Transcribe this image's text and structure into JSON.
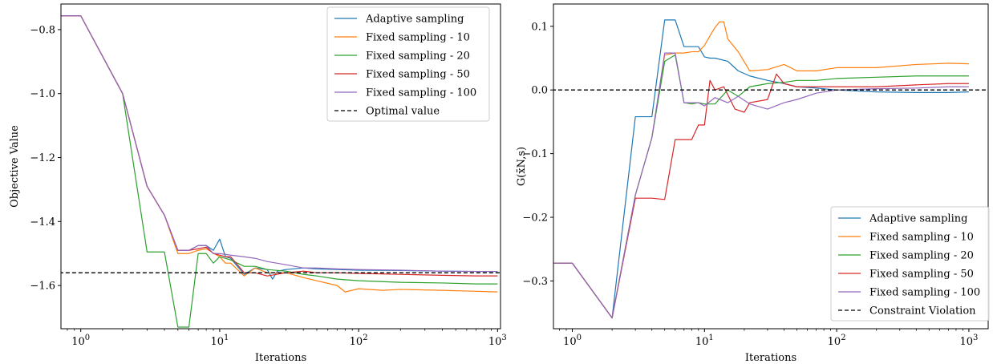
{
  "chart_data": [
    {
      "type": "line",
      "xscale": "log",
      "xlim": [
        0.72,
        1050
      ],
      "ylim": [
        -1.735,
        -0.72
      ],
      "xlabel": "Iterations",
      "ylabel": "Objective Value",
      "xticks": [
        1,
        10,
        100,
        1000
      ],
      "xtick_labels": [
        "10⁰",
        "10¹",
        "10²",
        "10³"
      ],
      "yticks": [
        -0.8,
        -1.0,
        -1.2,
        -1.4,
        -1.6
      ],
      "ytick_labels": [
        "−0.8",
        "−1.0",
        "−1.2",
        "−1.4",
        "−1.6"
      ],
      "legend_position": "top-right",
      "series": [
        {
          "name": "Adaptive sampling",
          "color": "#1f77b4",
          "x": [
            0.7,
            1,
            2,
            3,
            4,
            5,
            6,
            7,
            8,
            9,
            10,
            11,
            12,
            15,
            18,
            22,
            24,
            26,
            30,
            40,
            50,
            70,
            100,
            200,
            400,
            700,
            1000
          ],
          "y": [
            -0.757,
            -0.757,
            -1.0,
            -1.29,
            -1.38,
            -1.49,
            -1.49,
            -1.475,
            -1.475,
            -1.49,
            -1.455,
            -1.51,
            -1.515,
            -1.565,
            -1.545,
            -1.55,
            -1.58,
            -1.555,
            -1.55,
            -1.545,
            -1.548,
            -1.55,
            -1.552,
            -1.553,
            -1.555,
            -1.556,
            -1.556
          ]
        },
        {
          "name": "Fixed sampling - 10",
          "color": "#ff7f0e",
          "x": [
            0.7,
            1,
            2,
            3,
            4,
            5,
            6,
            7,
            8,
            10,
            11,
            12,
            15,
            18,
            22,
            30,
            40,
            50,
            70,
            80,
            100,
            150,
            200,
            400,
            700,
            1000
          ],
          "y": [
            -0.757,
            -0.757,
            -1.0,
            -1.29,
            -1.38,
            -1.5,
            -1.5,
            -1.49,
            -1.485,
            -1.51,
            -1.53,
            -1.53,
            -1.57,
            -1.545,
            -1.56,
            -1.56,
            -1.575,
            -1.585,
            -1.6,
            -1.62,
            -1.61,
            -1.615,
            -1.612,
            -1.615,
            -1.618,
            -1.62
          ]
        },
        {
          "name": "Fixed sampling - 20",
          "color": "#2ca02c",
          "x": [
            0.7,
            1,
            2,
            3,
            4,
            5,
            6,
            7,
            8,
            9,
            10,
            12,
            15,
            18,
            22,
            30,
            40,
            50,
            70,
            100,
            200,
            400,
            700,
            1000
          ],
          "y": [
            -0.757,
            -0.757,
            -1.0,
            -1.495,
            -1.495,
            -1.73,
            -1.73,
            -1.5,
            -1.5,
            -1.53,
            -1.51,
            -1.52,
            -1.54,
            -1.54,
            -1.55,
            -1.555,
            -1.565,
            -1.57,
            -1.58,
            -1.585,
            -1.59,
            -1.592,
            -1.595,
            -1.595
          ]
        },
        {
          "name": "Fixed sampling - 50",
          "color": "#d62728",
          "x": [
            0.7,
            1,
            2,
            3,
            4,
            5,
            6,
            7,
            8,
            9,
            10,
            11,
            12,
            15,
            18,
            22,
            30,
            40,
            50,
            70,
            100,
            200,
            400,
            700,
            1000
          ],
          "y": [
            -0.757,
            -0.757,
            -1.0,
            -1.29,
            -1.38,
            -1.49,
            -1.49,
            -1.485,
            -1.48,
            -1.5,
            -1.505,
            -1.51,
            -1.51,
            -1.56,
            -1.56,
            -1.57,
            -1.56,
            -1.555,
            -1.56,
            -1.56,
            -1.562,
            -1.565,
            -1.568,
            -1.57,
            -1.57
          ]
        },
        {
          "name": "Fixed sampling - 100",
          "color": "#9467bd",
          "x": [
            0.7,
            1,
            2,
            3,
            4,
            5,
            6,
            7,
            8,
            9,
            10,
            12,
            15,
            18,
            22,
            30,
            40,
            50,
            70,
            100,
            200,
            400,
            700,
            1000
          ],
          "y": [
            -0.757,
            -0.757,
            -1.0,
            -1.29,
            -1.38,
            -1.49,
            -1.49,
            -1.475,
            -1.475,
            -1.5,
            -1.5,
            -1.505,
            -1.51,
            -1.515,
            -1.525,
            -1.535,
            -1.545,
            -1.545,
            -1.548,
            -1.55,
            -1.552,
            -1.555,
            -1.556,
            -1.556
          ]
        },
        {
          "name": "Optimal value",
          "color": "#000000",
          "dashed": true,
          "x": [
            0.7,
            1050
          ],
          "y": [
            -1.56,
            -1.56
          ]
        }
      ]
    },
    {
      "type": "line",
      "xscale": "log",
      "xlim": [
        0.72,
        1400
      ],
      "ylim": [
        -0.375,
        0.135
      ],
      "xlabel": "Iterations",
      "ylabel": "G(x̄N,s)",
      "xticks": [
        1,
        10,
        100,
        1000
      ],
      "xtick_labels": [
        "10⁰",
        "10¹",
        "10²",
        "10³"
      ],
      "yticks": [
        0.1,
        0.0,
        -0.1,
        -0.2,
        -0.3
      ],
      "ytick_labels": [
        "0.1",
        "0.0",
        "−0.1",
        "−0.2",
        "−0.3"
      ],
      "legend_position": "bottom-right",
      "series": [
        {
          "name": "Adaptive sampling",
          "color": "#1f77b4",
          "x": [
            0.7,
            1,
            2,
            3,
            4,
            5,
            6,
            7,
            8,
            9,
            10,
            11,
            12,
            15,
            18,
            22,
            30,
            40,
            50,
            70,
            100,
            200,
            400,
            700,
            1000
          ],
          "y": [
            -0.272,
            -0.272,
            -0.358,
            -0.042,
            -0.042,
            0.11,
            0.11,
            0.068,
            0.068,
            0.068,
            0.052,
            0.05,
            0.05,
            0.045,
            0.03,
            0.022,
            0.015,
            0.01,
            0.005,
            0.003,
            0.0,
            -0.003,
            -0.004,
            -0.004,
            -0.003
          ]
        },
        {
          "name": "Fixed sampling - 10",
          "color": "#ff7f0e",
          "x": [
            0.7,
            1,
            2,
            3,
            4,
            5,
            6,
            7,
            8,
            9,
            10,
            11,
            12,
            13,
            14,
            15,
            18,
            22,
            30,
            40,
            50,
            70,
            100,
            200,
            400,
            700,
            1000
          ],
          "y": [
            -0.272,
            -0.272,
            -0.358,
            -0.165,
            -0.075,
            0.055,
            0.058,
            0.058,
            0.06,
            0.06,
            0.07,
            0.085,
            0.098,
            0.107,
            0.107,
            0.08,
            0.06,
            0.03,
            0.032,
            0.04,
            0.03,
            0.03,
            0.035,
            0.035,
            0.04,
            0.042,
            0.041
          ]
        },
        {
          "name": "Fixed sampling - 20",
          "color": "#2ca02c",
          "x": [
            0.7,
            1,
            2,
            3,
            4,
            5,
            6,
            7,
            8,
            9,
            10,
            12,
            15,
            18,
            22,
            30,
            40,
            50,
            70,
            100,
            200,
            400,
            700,
            1000
          ],
          "y": [
            -0.272,
            -0.272,
            -0.358,
            -0.165,
            -0.075,
            0.045,
            0.055,
            -0.02,
            -0.022,
            -0.02,
            -0.022,
            -0.022,
            0.0,
            -0.01,
            0.005,
            0.01,
            0.012,
            0.015,
            0.015,
            0.018,
            0.02,
            0.022,
            0.022,
            0.022
          ]
        },
        {
          "name": "Fixed sampling - 50",
          "color": "#d62728",
          "x": [
            0.7,
            1,
            2,
            3,
            4,
            5,
            6,
            7,
            8,
            9,
            10,
            11,
            12,
            14,
            17,
            20,
            22,
            30,
            35,
            40,
            50,
            70,
            100,
            200,
            400,
            700,
            1000
          ],
          "y": [
            -0.272,
            -0.272,
            -0.358,
            -0.17,
            -0.17,
            -0.172,
            -0.078,
            -0.078,
            -0.078,
            -0.055,
            -0.055,
            0.015,
            0.0,
            0.005,
            -0.03,
            -0.035,
            -0.02,
            -0.015,
            0.025,
            0.01,
            0.005,
            0.005,
            0.005,
            0.005,
            0.008,
            0.01,
            0.01
          ]
        },
        {
          "name": "Fixed sampling - 100",
          "color": "#9467bd",
          "x": [
            0.7,
            1,
            2,
            3,
            4,
            5,
            6,
            7,
            8,
            9,
            10,
            12,
            15,
            18,
            22,
            30,
            40,
            50,
            70,
            100,
            200,
            400,
            700,
            1000
          ],
          "y": [
            -0.272,
            -0.272,
            -0.358,
            -0.165,
            -0.075,
            0.058,
            0.058,
            -0.02,
            -0.02,
            -0.02,
            -0.025,
            -0.012,
            -0.02,
            -0.01,
            -0.022,
            -0.03,
            -0.02,
            -0.015,
            -0.005,
            0.0,
            0.002,
            0.003,
            0.005,
            0.005
          ]
        },
        {
          "name": "Constraint Violation",
          "color": "#000000",
          "dashed": true,
          "x": [
            0.7,
            1400
          ],
          "y": [
            0.0,
            0.0
          ]
        }
      ]
    }
  ]
}
